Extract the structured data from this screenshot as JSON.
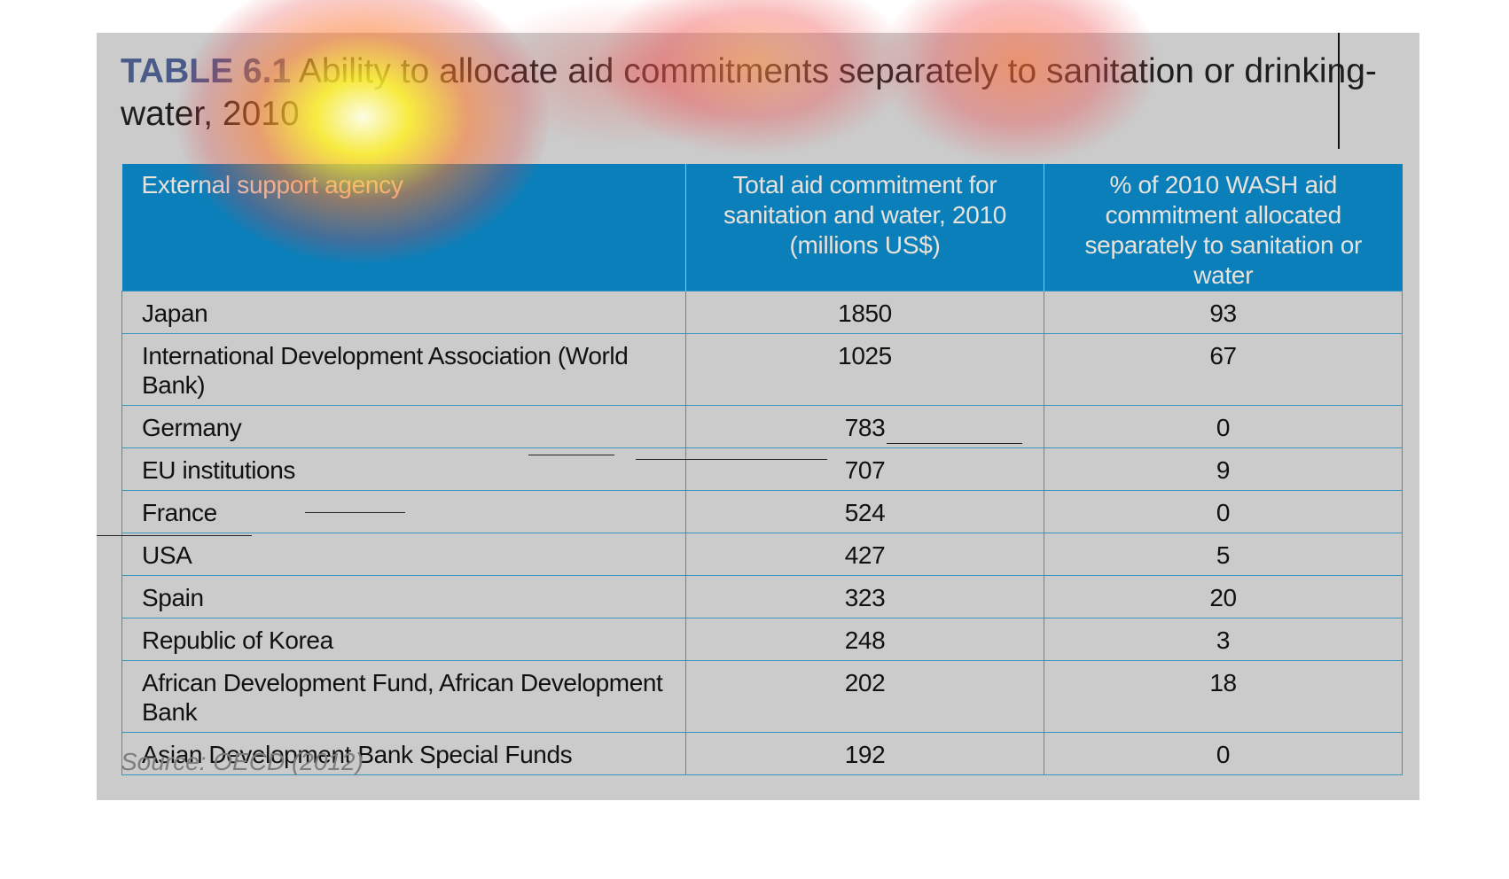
{
  "title": {
    "label": "TABLE 6.1",
    "text": "Ability to allocate aid commitments separately to sanitation or drinking-water, 2010"
  },
  "table": {
    "headers": {
      "agency": "External support agency",
      "total": "Total aid commitment for sanitation and water, 2010 (millions US$)",
      "pct": "% of 2010 WASH aid commitment allocated separately to sanitation or water"
    },
    "rows": [
      {
        "agency": "Japan",
        "total": "1850",
        "pct": "93"
      },
      {
        "agency": "International Development Association (World Bank)",
        "total": "1025",
        "pct": "67"
      },
      {
        "agency": "Germany",
        "total": "783",
        "pct": "0"
      },
      {
        "agency": "EU institutions",
        "total": "707",
        "pct": "9"
      },
      {
        "agency": "France",
        "total": "524",
        "pct": "0"
      },
      {
        "agency": "USA",
        "total": "427",
        "pct": "5"
      },
      {
        "agency": "Spain",
        "total": "323",
        "pct": "20"
      },
      {
        "agency": "Republic of Korea",
        "total": "248",
        "pct": "3"
      },
      {
        "agency": "African Development Fund, African Development Bank",
        "total": "202",
        "pct": "18"
      },
      {
        "agency": "Asian Development Bank Special Funds",
        "total": "192",
        "pct": "0"
      }
    ]
  },
  "source": "Source: OECD (2012)",
  "colors": {
    "panel_bg": "#cbcbcb",
    "header_bg": "#0b7fba",
    "header_text": "#e7e2dc",
    "grid_line": "#3a94c1",
    "title_label": "#4a5b8a",
    "source_text": "#7d7d7d"
  },
  "overlay": {
    "type": "attention-heatmap"
  }
}
